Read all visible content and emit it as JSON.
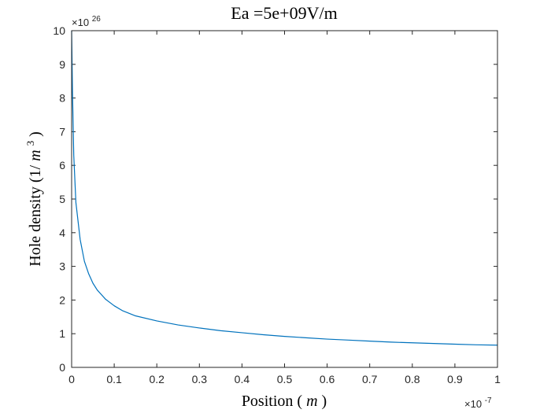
{
  "chart_data": {
    "type": "line",
    "title": "Ea =5e+09V/m",
    "xlabel": {
      "prefix": "Position (",
      "var": "m",
      "suffix": ")"
    },
    "ylabel": {
      "prefix": "Hole density (1/",
      "var": "m",
      "sup": "3",
      "suffix": ")"
    },
    "x_multiplier": {
      "base": "×10",
      "exp": "-7"
    },
    "y_multiplier": {
      "base": "×10",
      "exp": "26"
    },
    "xlim": [
      0,
      1
    ],
    "ylim": [
      0,
      10
    ],
    "xticks": [
      "0",
      "0.1",
      "0.2",
      "0.3",
      "0.4",
      "0.5",
      "0.6",
      "0.7",
      "0.8",
      "0.9",
      "1"
    ],
    "yticks": [
      "0",
      "1",
      "2",
      "3",
      "4",
      "5",
      "6",
      "7",
      "8",
      "9",
      "10"
    ],
    "grid": false,
    "series": [
      {
        "color": "#0072BD",
        "x": [
          0,
          0.002,
          0.005,
          0.01,
          0.02,
          0.03,
          0.04,
          0.05,
          0.06,
          0.08,
          0.1,
          0.12,
          0.15,
          0.2,
          0.25,
          0.3,
          0.35,
          0.4,
          0.45,
          0.5,
          0.55,
          0.6,
          0.65,
          0.7,
          0.75,
          0.8,
          0.85,
          0.9,
          0.95,
          1.0
        ],
        "y": [
          10,
          8.2,
          6.3,
          4.9,
          3.8,
          3.15,
          2.78,
          2.5,
          2.3,
          2.02,
          1.83,
          1.68,
          1.53,
          1.38,
          1.26,
          1.17,
          1.09,
          1.03,
          0.97,
          0.92,
          0.88,
          0.84,
          0.81,
          0.78,
          0.75,
          0.73,
          0.71,
          0.69,
          0.67,
          0.66
        ]
      }
    ]
  }
}
